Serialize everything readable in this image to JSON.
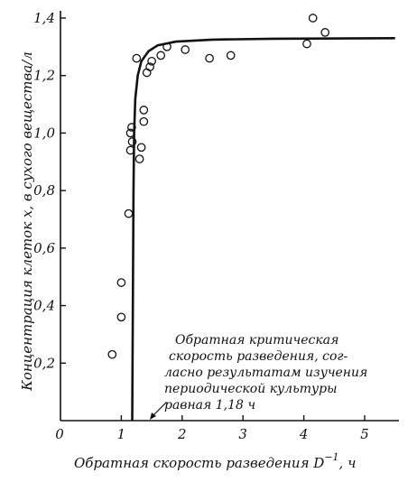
{
  "chart_data": {
    "type": "scatter",
    "xlabel_main": "Обратная скорость разведения D",
    "xlabel_sup": "−1",
    "xlabel_unit": ", ч",
    "ylabel": "Концентрация клеток x, в сухого вещества/л",
    "xlim": [
      0,
      5.5
    ],
    "ylim": [
      0,
      1.4
    ],
    "x_ticks": [
      "0",
      "1",
      "2",
      "3",
      "4",
      "5"
    ],
    "x_tick_values": [
      0,
      1,
      2,
      3,
      4,
      5
    ],
    "y_ticks": [
      "0,2",
      "0,4",
      "0,6",
      "0,8",
      "1,0",
      "1,2",
      "1,4"
    ],
    "y_tick_values": [
      0.2,
      0.4,
      0.6,
      0.8,
      1.0,
      1.2,
      1.4
    ],
    "points": [
      {
        "x": 0.85,
        "y": 0.23
      },
      {
        "x": 1.0,
        "y": 0.36
      },
      {
        "x": 1.0,
        "y": 0.48
      },
      {
        "x": 1.12,
        "y": 0.72
      },
      {
        "x": 1.15,
        "y": 0.94
      },
      {
        "x": 1.18,
        "y": 0.97
      },
      {
        "x": 1.15,
        "y": 1.0
      },
      {
        "x": 1.17,
        "y": 1.02
      },
      {
        "x": 1.3,
        "y": 0.91
      },
      {
        "x": 1.33,
        "y": 0.95
      },
      {
        "x": 1.37,
        "y": 1.04
      },
      {
        "x": 1.37,
        "y": 1.08
      },
      {
        "x": 1.25,
        "y": 1.26
      },
      {
        "x": 1.42,
        "y": 1.21
      },
      {
        "x": 1.47,
        "y": 1.23
      },
      {
        "x": 1.5,
        "y": 1.25
      },
      {
        "x": 1.65,
        "y": 1.27
      },
      {
        "x": 1.75,
        "y": 1.3
      },
      {
        "x": 2.05,
        "y": 1.29
      },
      {
        "x": 2.45,
        "y": 1.26
      },
      {
        "x": 2.8,
        "y": 1.27
      },
      {
        "x": 4.05,
        "y": 1.31
      },
      {
        "x": 4.15,
        "y": 1.4
      },
      {
        "x": 4.35,
        "y": 1.35
      }
    ],
    "curve": [
      [
        1.18,
        0.0
      ],
      [
        1.19,
        0.4
      ],
      [
        1.2,
        0.8
      ],
      [
        1.21,
        1.0
      ],
      [
        1.23,
        1.12
      ],
      [
        1.27,
        1.2
      ],
      [
        1.33,
        1.25
      ],
      [
        1.45,
        1.285
      ],
      [
        1.6,
        1.305
      ],
      [
        1.9,
        1.318
      ],
      [
        2.5,
        1.325
      ],
      [
        3.5,
        1.328
      ],
      [
        5.5,
        1.33
      ]
    ],
    "annotation": {
      "lines": [
        "Обратная критическая",
        "скорость разведения, сог-",
        "ласно результатам изучения",
        "периодической культуры",
        "равная 1,18 ч"
      ],
      "x": 1.18
    }
  }
}
